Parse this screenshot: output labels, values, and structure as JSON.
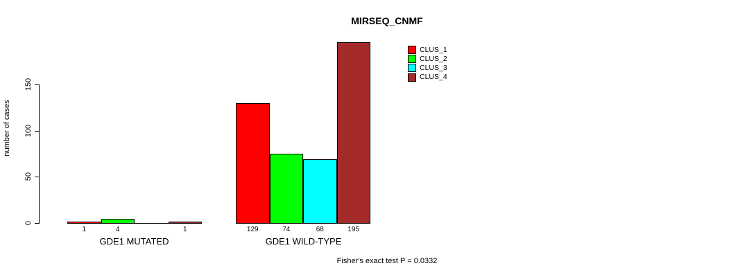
{
  "title": "MIRSEQ_CNMF",
  "footer": "Fisher's exact test P = 0.0332",
  "chart_data": {
    "type": "bar",
    "title": "MIRSEQ_CNMF",
    "xlabel": "",
    "ylabel": "number of cases",
    "yticks": [
      0,
      50,
      100,
      150
    ],
    "ylim": [
      0,
      195
    ],
    "grid": false,
    "legend_position": "top-right",
    "categories": [
      "GDE1 MUTATED",
      "GDE1 WILD-TYPE"
    ],
    "series": [
      {
        "name": "CLUS_1",
        "color": "#FF0000",
        "values": [
          1,
          129
        ]
      },
      {
        "name": "CLUS_2",
        "color": "#00FF00",
        "values": [
          4,
          74
        ]
      },
      {
        "name": "CLUS_3",
        "color": "#00FFFF",
        "values": [
          0,
          68
        ]
      },
      {
        "name": "CLUS_4",
        "color": "#A52A2A",
        "values": [
          1,
          195
        ]
      }
    ],
    "bar_value_labels": [
      [
        "1",
        "4",
        "",
        "1"
      ],
      [
        "129",
        "74",
        "68",
        "195"
      ]
    ],
    "annotation": "Fisher's exact test P = 0.0332"
  }
}
